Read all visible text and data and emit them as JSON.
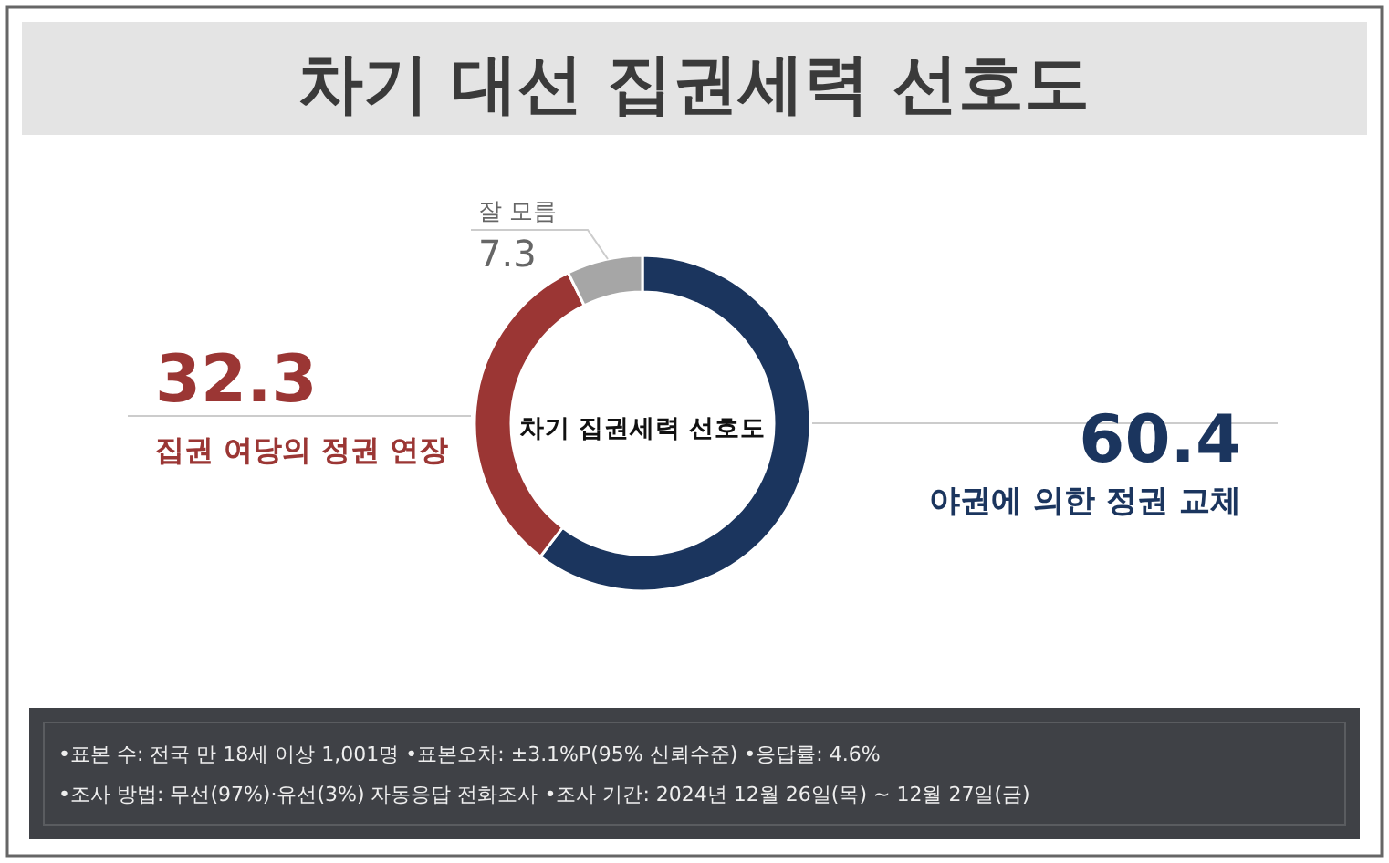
{
  "chart_data": {
    "type": "donut",
    "title": "차기 대선 집권세력 선호도",
    "categories": [
      "야권에 의한 정권 교체",
      "집권 여당의 정권 연장",
      "잘 모름"
    ],
    "values": [
      60.4,
      32.3,
      7.3
    ],
    "colors": [
      "#1b355e",
      "#9b3634",
      "#a6a6a6"
    ],
    "data_labels": true,
    "annotations": [
      "차기 집권세력 선호도",
      "•표본 수: 전국 만 18세 이상 1,001명 •표본오차: ±3.1%P(95% 신뢰수준) •응답률: 4.6%",
      "•조사 방법: 무선(97%)·유선(3%) 자동응답 전화조사 •조사 기간: 2024년 12월 26일(목) ~ 12월 27일(금)"
    ]
  }
}
